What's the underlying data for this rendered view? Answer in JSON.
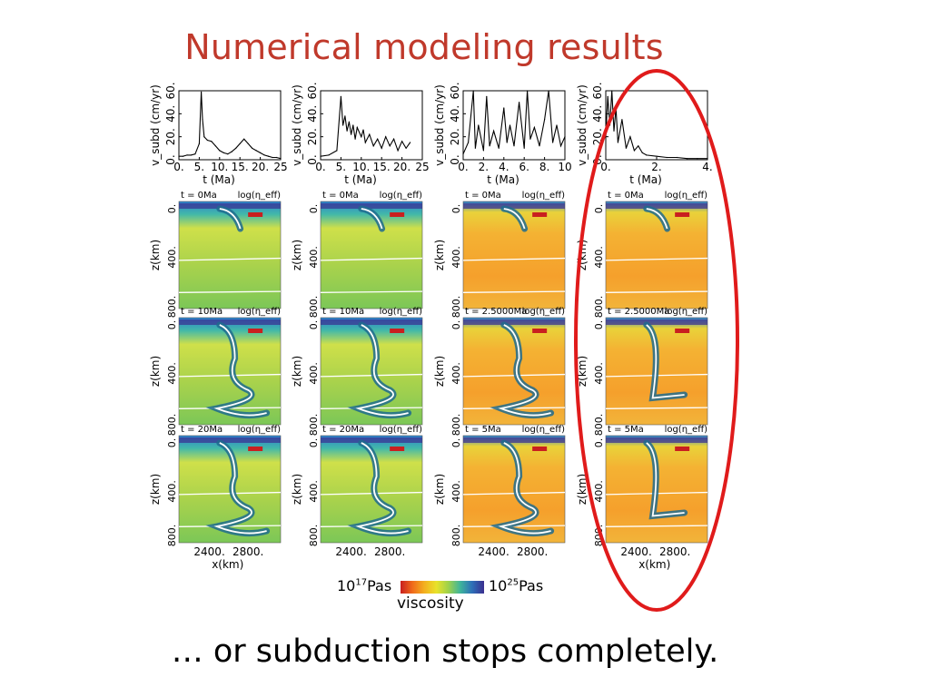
{
  "slide": {
    "title": "Numerical modeling results",
    "caption": "… or subduction stops completely.",
    "highlight_color": "#e01b1b"
  },
  "colorbar": {
    "low_label": "10",
    "low_exp": "17",
    "low_unit": "Pas",
    "high_label": "10",
    "high_exp": "25",
    "high_unit": "Pas",
    "name": "viscosity",
    "colors": [
      "#c91f1f",
      "#f06b1b",
      "#f3b01f",
      "#e9e22a",
      "#9fd24a",
      "#3fb59a",
      "#2e6fb8",
      "#3a2f8f"
    ]
  },
  "chart_data": [
    {
      "type": "line",
      "title": "",
      "ylabel": "v_subd (cm/yr)",
      "xlabel": "t (Ma)",
      "xlim": [
        0,
        25
      ],
      "ylim": [
        0,
        60
      ],
      "xticks": [
        "0.",
        "5.",
        "10.",
        "15.",
        "20.",
        "25"
      ],
      "yticks": [
        "0.",
        "20.",
        "40.",
        "60."
      ],
      "x": [
        0,
        1,
        2,
        3,
        4,
        5,
        5.5,
        5.8,
        6.2,
        7,
        8,
        9,
        10,
        11,
        12,
        13,
        14,
        15,
        16,
        17,
        18,
        19,
        20,
        21,
        22,
        23,
        24,
        25
      ],
      "y": [
        3,
        3,
        4,
        4,
        5,
        14,
        59,
        35,
        20,
        17,
        16,
        12,
        8,
        6,
        5,
        7,
        10,
        14,
        18,
        14,
        10,
        8,
        6,
        4,
        3,
        2,
        2,
        1
      ],
      "panels": [
        {
          "time": "t = 0Ma",
          "scale": "log(η_eff)"
        },
        {
          "time": "t = 10Ma",
          "scale": "log(η_eff)"
        },
        {
          "time": "t = 20Ma",
          "scale": "log(η_eff)"
        }
      ]
    },
    {
      "type": "line",
      "title": "",
      "ylabel": "v_subd (cm/yr)",
      "xlabel": "t (Ma)",
      "xlim": [
        0,
        25
      ],
      "ylim": [
        0,
        60
      ],
      "xticks": [
        "0.",
        "5.",
        "10.",
        "15.",
        "20.",
        "25"
      ],
      "yticks": [
        "0.",
        "20.",
        "40.",
        "60."
      ],
      "x": [
        0,
        2,
        4,
        5,
        5.5,
        6,
        6.5,
        7,
        7.5,
        8,
        8.5,
        9,
        10,
        10.5,
        11,
        12,
        13,
        14,
        15,
        16,
        17,
        18,
        19,
        20,
        21,
        22
      ],
      "y": [
        3,
        4,
        8,
        55,
        30,
        38,
        25,
        33,
        22,
        30,
        18,
        28,
        20,
        26,
        15,
        22,
        12,
        18,
        10,
        20,
        12,
        18,
        8,
        16,
        10,
        15
      ],
      "panels": [
        {
          "time": "t = 0Ma",
          "scale": "log(η_eff)"
        },
        {
          "time": "t = 10Ma",
          "scale": "log(η_eff)"
        },
        {
          "time": "t = 20Ma",
          "scale": "log(η_eff)"
        }
      ]
    },
    {
      "type": "line",
      "title": "",
      "ylabel": "v_subd (cm/yr)",
      "xlabel": "t (Ma)",
      "xlim": [
        0,
        10
      ],
      "ylim": [
        0,
        60
      ],
      "xticks": [
        "0.",
        "2.",
        "4.",
        "6.",
        "8.",
        "10"
      ],
      "yticks": [
        "0.",
        "20.",
        "40.",
        "60."
      ],
      "x": [
        0,
        0.5,
        1,
        1.2,
        1.5,
        2,
        2.3,
        2.6,
        3,
        3.5,
        4,
        4.3,
        4.6,
        5,
        5.5,
        6,
        6.3,
        6.6,
        7,
        7.5,
        8,
        8.4,
        8.8,
        9.2,
        9.6,
        10
      ],
      "y": [
        5,
        15,
        60,
        10,
        30,
        8,
        55,
        12,
        25,
        10,
        45,
        15,
        30,
        12,
        50,
        10,
        60,
        18,
        28,
        12,
        35,
        60,
        15,
        30,
        12,
        20
      ],
      "panels": [
        {
          "time": "t = 0Ma",
          "scale": "log(η_eff)"
        },
        {
          "time": "t = 2.5000Ma",
          "scale": "log(η_eff)"
        },
        {
          "time": "t = 5Ma",
          "scale": "log(η_eff)"
        }
      ]
    },
    {
      "type": "line",
      "title": "",
      "ylabel": "v_subd (cm/yr)",
      "xlabel": "t (Ma)",
      "xlim": [
        0,
        5
      ],
      "ylim": [
        0,
        60
      ],
      "xticks": [
        "0.",
        "2.",
        "4."
      ],
      "yticks": [
        "0.",
        "20.",
        "40.",
        "60."
      ],
      "x": [
        0,
        0.1,
        0.2,
        0.3,
        0.4,
        0.5,
        0.6,
        0.8,
        1.0,
        1.2,
        1.4,
        1.6,
        1.8,
        2.0,
        2.5,
        3.0,
        3.5,
        4.0,
        4.5,
        5.0
      ],
      "y": [
        20,
        55,
        30,
        60,
        25,
        45,
        15,
        35,
        10,
        20,
        8,
        12,
        6,
        4,
        3,
        2,
        2,
        1,
        1,
        1
      ],
      "panels": [
        {
          "time": "t = 0Ma",
          "scale": "log(η_eff)"
        },
        {
          "time": "t = 2.5000Ma",
          "scale": "log(η_eff)"
        },
        {
          "time": "t = 5Ma",
          "scale": "log(η_eff)"
        }
      ]
    }
  ],
  "map_axes": {
    "z_label": "z(km)",
    "z_ticks": [
      "0.",
      "400.",
      "800."
    ],
    "z_ticks_alt": [
      "0.800.",
      "400."
    ],
    "x_label": "x(km)",
    "x_ticks": [
      "2400.",
      "2800."
    ]
  }
}
